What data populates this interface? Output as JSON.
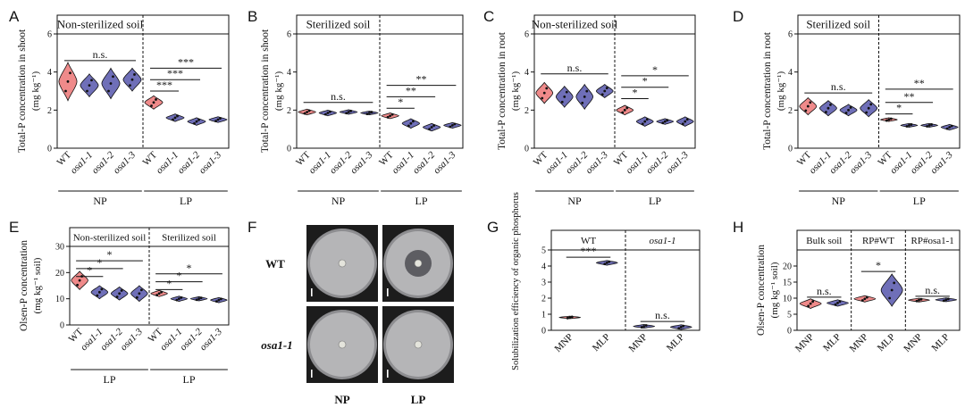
{
  "colors": {
    "wt": "#ef8a8a",
    "mutant": "#6f6fb8",
    "mutant_b": "#7b7ec6",
    "axis": "#111111",
    "plate_bg": "#1c1c1c",
    "plate_dish": "#b5b5b7",
    "plate_rim": "#8d8d90",
    "halo": "#5d5d62",
    "colony": "#e4e4dc"
  },
  "chart_data": [
    {
      "id": "A",
      "type": "violin",
      "title": "Non-sterilized soil",
      "ylabel": "Total-P concentration in shoot",
      "yunit": "(mg kg⁻¹)",
      "ylim": [
        0,
        6
      ],
      "yticks": [
        "0",
        "2",
        "4",
        "6"
      ],
      "categories": [
        "WT",
        "osa1-1",
        "osa1-2",
        "osa1-3",
        "WT",
        "osa1-1",
        "osa1-2",
        "osa1-3"
      ],
      "values": [
        3.5,
        3.3,
        3.4,
        3.6,
        2.4,
        1.6,
        1.4,
        1.5
      ],
      "spread": [
        1.0,
        0.6,
        0.8,
        0.6,
        0.35,
        0.2,
        0.2,
        0.15
      ],
      "groups": [
        {
          "label": "NP",
          "from": 0,
          "to": 3
        },
        {
          "label": "LP",
          "from": 4,
          "to": 7
        }
      ],
      "significance": [
        {
          "text": "n.s.",
          "from": 0,
          "to": 3,
          "y": 4.6
        },
        {
          "text": "***",
          "from": 4,
          "to": 7,
          "y": 4.2
        },
        {
          "text": "***",
          "from": 4,
          "to": 6,
          "y": 3.6
        },
        {
          "text": "***",
          "from": 4,
          "to": 5,
          "y": 3.0
        }
      ]
    },
    {
      "id": "B",
      "type": "violin",
      "title": "Sterilized soil",
      "ylabel": "Total-P concentration in shoot",
      "yunit": "(mg kg⁻¹)",
      "ylim": [
        0,
        6
      ],
      "yticks": [
        "0",
        "2",
        "4",
        "6"
      ],
      "categories": [
        "WT",
        "osa1-1",
        "osa1-2",
        "osa1-3",
        "WT",
        "osa1-1",
        "osa1-2",
        "osa1-3"
      ],
      "values": [
        1.9,
        1.85,
        1.9,
        1.85,
        1.7,
        1.3,
        1.1,
        1.2
      ],
      "spread": [
        0.15,
        0.15,
        0.12,
        0.1,
        0.15,
        0.25,
        0.2,
        0.15
      ],
      "groups": [
        {
          "label": "NP",
          "from": 0,
          "to": 3
        },
        {
          "label": "LP",
          "from": 4,
          "to": 7
        }
      ],
      "significance": [
        {
          "text": "n.s.",
          "from": 0,
          "to": 3,
          "y": 2.4
        },
        {
          "text": "**",
          "from": 4,
          "to": 7,
          "y": 3.3
        },
        {
          "text": "**",
          "from": 4,
          "to": 6,
          "y": 2.7
        },
        {
          "text": "*",
          "from": 4,
          "to": 5,
          "y": 2.1
        }
      ]
    },
    {
      "id": "C",
      "type": "violin",
      "title": "Non-sterilized soil",
      "ylabel": "Total-P concentration in root",
      "yunit": "(mg kg⁻¹)",
      "ylim": [
        0,
        6
      ],
      "yticks": [
        "0",
        "2",
        "4",
        "6"
      ],
      "categories": [
        "WT",
        "osa1-1",
        "osa1-2",
        "osa1-3",
        "WT",
        "osa1-1",
        "osa1-2",
        "osa1-3"
      ],
      "values": [
        2.9,
        2.7,
        2.7,
        3.0,
        2.0,
        1.4,
        1.4,
        1.4
      ],
      "spread": [
        0.55,
        0.55,
        0.65,
        0.35,
        0.25,
        0.25,
        0.15,
        0.25
      ],
      "groups": [
        {
          "label": "NP",
          "from": 0,
          "to": 3
        },
        {
          "label": "LP",
          "from": 4,
          "to": 7
        }
      ],
      "significance": [
        {
          "text": "n.s.",
          "from": 0,
          "to": 3,
          "y": 3.9
        },
        {
          "text": "*",
          "from": 4,
          "to": 7,
          "y": 3.8
        },
        {
          "text": "*",
          "from": 4,
          "to": 6,
          "y": 3.2
        },
        {
          "text": "*",
          "from": 4,
          "to": 5,
          "y": 2.6
        }
      ]
    },
    {
      "id": "D",
      "type": "violin",
      "title": "Sterilized soil",
      "ylabel": "Total-P concentration in root",
      "yunit": "(mg kg⁻¹)",
      "ylim": [
        0,
        6
      ],
      "yticks": [
        "0",
        "2",
        "4",
        "6"
      ],
      "categories": [
        "WT",
        "osa1-1",
        "osa1-2",
        "osa1-3",
        "WT",
        "osa1-1",
        "osa1-2",
        "osa1-3"
      ],
      "values": [
        2.2,
        2.1,
        2.0,
        2.1,
        1.5,
        1.2,
        1.2,
        1.1
      ],
      "spread": [
        0.45,
        0.4,
        0.3,
        0.45,
        0.1,
        0.1,
        0.1,
        0.15
      ],
      "groups": [
        {
          "label": "NP",
          "from": 0,
          "to": 3
        },
        {
          "label": "LP",
          "from": 4,
          "to": 7
        }
      ],
      "significance": [
        {
          "text": "n.s.",
          "from": 0,
          "to": 3,
          "y": 2.9
        },
        {
          "text": "**",
          "from": 4,
          "to": 7,
          "y": 3.1
        },
        {
          "text": "**",
          "from": 4,
          "to": 6,
          "y": 2.4
        },
        {
          "text": "*",
          "from": 4,
          "to": 5,
          "y": 1.8
        }
      ]
    },
    {
      "id": "E",
      "type": "violin",
      "titles": [
        "Non-sterilized soil",
        "Sterilized soil"
      ],
      "ylabel": "Olsen-P concentration",
      "yunit": "(mg kg⁻¹ soil)",
      "ylim": [
        0,
        30
      ],
      "yticks": [
        "0",
        "10",
        "20",
        "30"
      ],
      "categories": [
        "WT",
        "osa1-1",
        "osa1-2",
        "osa1-3",
        "WT",
        "osa1-1",
        "osa1-2",
        "osa1-3"
      ],
      "values": [
        17,
        12.5,
        12,
        12,
        12,
        10,
        10,
        9.5
      ],
      "spread": [
        3.5,
        2.5,
        2.5,
        3,
        1.2,
        1,
        0.8,
        1
      ],
      "groups": [
        {
          "label": "LP",
          "from": 0,
          "to": 3
        },
        {
          "label": "LP",
          "from": 4,
          "to": 7
        }
      ],
      "significance": [
        {
          "text": "*",
          "from": 0,
          "to": 3,
          "y": 24.5
        },
        {
          "text": "*",
          "from": 0,
          "to": 2,
          "y": 21.5
        },
        {
          "text": "*",
          "from": 0,
          "to": 1,
          "y": 18.5
        },
        {
          "text": "*",
          "from": 4,
          "to": 7,
          "y": 19.5
        },
        {
          "text": "*",
          "from": 4,
          "to": 6,
          "y": 16.5
        },
        {
          "text": "*",
          "from": 4,
          "to": 5,
          "y": 13.5
        }
      ]
    },
    {
      "id": "G",
      "type": "violin",
      "titles": [
        "WT",
        "osa1-1"
      ],
      "ylabel": "Solubilization efficiency of organic phosphorus",
      "ylim": [
        0,
        5
      ],
      "yticks": [
        "0",
        "1",
        "2",
        "3",
        "4",
        "5"
      ],
      "categories": [
        "MNP",
        "MLP",
        "MNP",
        "MLP"
      ],
      "values": [
        0.8,
        4.2,
        0.25,
        0.2
      ],
      "spread": [
        0.08,
        0.15,
        0.12,
        0.15
      ],
      "significance": [
        {
          "text": "***",
          "from": 0,
          "to": 1,
          "y": 4.55
        },
        {
          "text": "n.s.",
          "from": 2,
          "to": 3,
          "y": 0.55
        }
      ]
    },
    {
      "id": "H",
      "type": "violin",
      "titles": [
        "Bulk soil",
        "RP#WT",
        "RP#osa1-1"
      ],
      "ylabel": "Olsen-P concentration",
      "yunit": "(mg kg⁻¹ soil)",
      "ylim": [
        0,
        25
      ],
      "yticks": [
        "0",
        "5",
        "10",
        "15",
        "20"
      ],
      "categories": [
        "MNP",
        "MLP",
        "MNP",
        "MLP",
        "MNP",
        "MLP"
      ],
      "values": [
        8.3,
        8.5,
        9.8,
        12.5,
        9.4,
        9.5
      ],
      "spread": [
        1.5,
        1.0,
        1.0,
        5,
        0.6,
        0.6
      ],
      "significance": [
        {
          "text": "n.s.",
          "from": 0,
          "to": 1,
          "y": 10.3
        },
        {
          "text": "*",
          "from": 2,
          "to": 3,
          "y": 18.3
        },
        {
          "text": "n.s.",
          "from": 4,
          "to": 5,
          "y": 10.6
        }
      ]
    }
  ],
  "plates": {
    "row_labels": [
      "WT",
      "osa1-1"
    ],
    "col_labels": [
      "NP",
      "LP"
    ]
  },
  "panel_letters": [
    "A",
    "B",
    "C",
    "D",
    "E",
    "F",
    "G",
    "H"
  ]
}
